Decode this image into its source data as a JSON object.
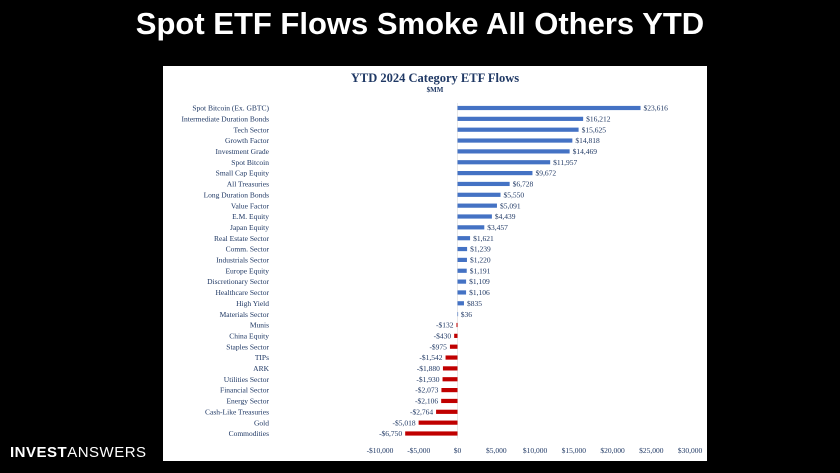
{
  "slide": {
    "title": "Spot ETF Flows Smoke All Others YTD",
    "brand_part1": "INVEST",
    "brand_part2": "ANSWERS"
  },
  "colors": {
    "positive": "#4472c4",
    "negative": "#c00000",
    "text": "#1f3864"
  },
  "chart_data": {
    "type": "bar",
    "orientation": "horizontal",
    "title": "YTD 2024 Category ETF Flows",
    "subtitle": "$MM",
    "categories": [
      "Spot Bitcoin (Ex. GBTC)",
      "Intermediate Duration Bonds",
      "Tech Sector",
      "Growth Factor",
      "Investment Grade",
      "Spot Bitcoin",
      "Small Cap Equity",
      "All Treasuries",
      "Long Duration Bonds",
      "Value Factor",
      "E.M. Equity",
      "Japan Equity",
      "Real Estate Sector",
      "Comm. Sector",
      "Industrials Sector",
      "Europe Equity",
      "Discretionary Sector",
      "Healthcare Sector",
      "High Yield",
      "Materials Sector",
      "Munis",
      "China Equity",
      "Staples Sector",
      "TIPs",
      "ARK",
      "Utilities Sector",
      "Financial Sector",
      "Energy Sector",
      "Cash-Like Treasuries",
      "Gold",
      "Commodities"
    ],
    "values": [
      23616,
      16212,
      15625,
      14818,
      14469,
      11957,
      9672,
      6728,
      5550,
      5091,
      4439,
      3457,
      1621,
      1239,
      1220,
      1191,
      1109,
      1106,
      835,
      36,
      -132,
      -430,
      -975,
      -1542,
      -1880,
      -1930,
      -2073,
      -2106,
      -2764,
      -5018,
      -6750
    ],
    "value_labels": [
      "$23,616",
      "$16,212",
      "$15,625",
      "$14,818",
      "$14,469",
      "$11,957",
      "$9,672",
      "$6,728",
      "$5,550",
      "$5,091",
      "$4,439",
      "$3,457",
      "$1,621",
      "$1,239",
      "$1,220",
      "$1,191",
      "$1,109",
      "$1,106",
      "$835",
      "$36",
      "-$132",
      "-$430",
      "-$975",
      "-$1,542",
      "-$1,880",
      "-$1,930",
      "-$2,073",
      "-$2,106",
      "-$2,764",
      "-$5,018",
      "-$6,750"
    ],
    "xlim": [
      -10000,
      30000
    ],
    "xticks": [
      -10000,
      -5000,
      0,
      5000,
      10000,
      15000,
      20000,
      25000,
      30000
    ],
    "xtick_labels": [
      "-$10,000",
      "-$5,000",
      "$0",
      "$5,000",
      "$10,000",
      "$15,000",
      "$20,000",
      "$25,000",
      "$30,000"
    ],
    "grid": false
  }
}
